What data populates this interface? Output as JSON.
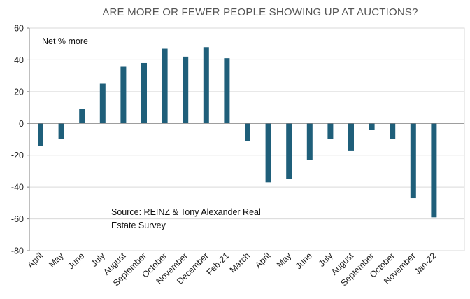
{
  "chart_data": {
    "type": "bar",
    "title": "ARE MORE OR FEWER PEOPLE SHOWING UP AT AUCTIONS?",
    "xlabel": "",
    "ylabel": "",
    "ylim": [
      -80,
      60
    ],
    "yticks": [
      60,
      40,
      20,
      0,
      -20,
      -40,
      -60,
      -80
    ],
    "grid": true,
    "legend": "none",
    "bar_color": "#1f5f7a",
    "grid_color": "#d9d9d9",
    "annotations": {
      "net_label": "Net % more",
      "source_line1": "Source: REINZ & Tony Alexander Real",
      "source_line2": "Estate Survey"
    },
    "categories": [
      "April",
      "May",
      "June",
      "July",
      "August",
      "September",
      "October",
      "November",
      "December",
      "Feb-21",
      "March",
      "April",
      "May",
      "June",
      "July",
      "August",
      "September",
      "October",
      "November",
      "Jan-22"
    ],
    "values": [
      -14,
      -10,
      9,
      25,
      36,
      38,
      47,
      42,
      48,
      41,
      -11,
      -37,
      -35,
      -23,
      -10,
      -17,
      -4,
      -10,
      -47,
      -59
    ]
  }
}
